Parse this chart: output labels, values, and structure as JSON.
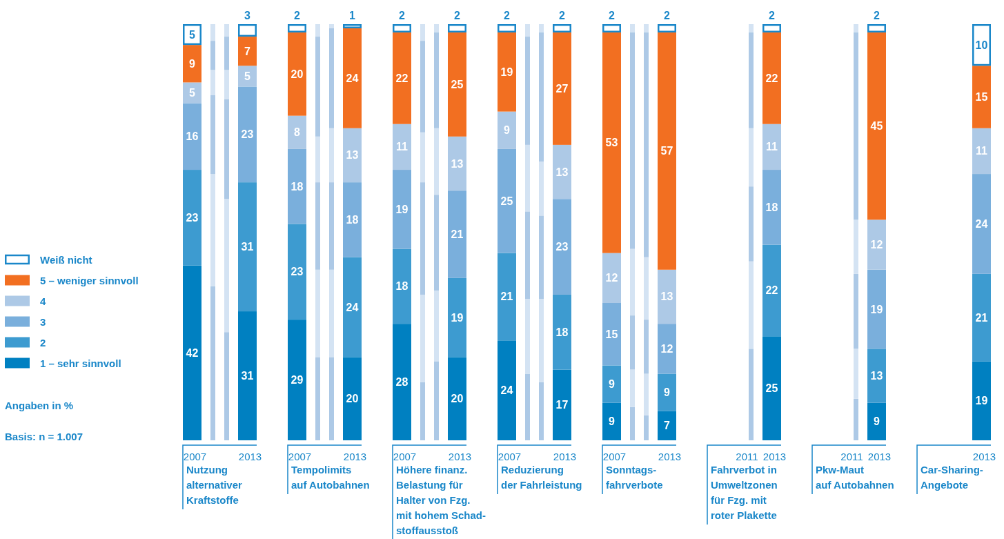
{
  "chart_data": [
    {
      "type": "bar",
      "stacked": true,
      "legend": "left",
      "annotations": [
        "Angaben in %",
        "Basis: n = 1.007"
      ],
      "categories": [
        "2007",
        null,
        null,
        "2013"
      ],
      "xlabel": "Nutzung\nalternativer\nKraftstoffe",
      "series": [
        {
          "name": "1 – sehr sinnvoll",
          "color": "#0080c1",
          "colors": [
            null,
            "#adc9e6",
            "#adc9e6",
            null
          ],
          "values": [
            42,
            37,
            26,
            31
          ],
          "value_labels": [
            "42",
            null,
            null,
            "31"
          ]
        },
        {
          "name": "2",
          "color": "#3d9bd0",
          "colors": [
            null,
            "#d4e3f3",
            "#d4e3f3",
            null
          ],
          "values": [
            23,
            27,
            32,
            31
          ],
          "value_labels": [
            "23",
            null,
            null,
            "31"
          ]
        },
        {
          "name": "3",
          "color": "#7aafdc",
          "colors": [
            null,
            "#adc9e6",
            "#adc9e6",
            null
          ],
          "values": [
            16,
            19,
            24,
            23
          ],
          "value_labels": [
            "16",
            null,
            null,
            "23"
          ]
        },
        {
          "name": "4",
          "color": "#adc9e6",
          "colors": [
            null,
            "#d4e3f3",
            "#d4e3f3",
            null
          ],
          "values": [
            5,
            6,
            7,
            5
          ],
          "value_labels": [
            "5",
            null,
            null,
            "5"
          ]
        },
        {
          "name": "5 – weniger sinnvoll",
          "color": "#f26f21",
          "colors": [
            null,
            "#adc9e6",
            "#adc9e6",
            null
          ],
          "values": [
            9,
            7,
            8,
            7
          ],
          "value_labels": [
            "9",
            null,
            null,
            "7"
          ]
        },
        {
          "name": "Weiß nicht",
          "color": "#ffffff",
          "colors": [
            null,
            "#d4e3f3",
            "#d4e3f3",
            null
          ],
          "values": [
            5,
            4,
            3,
            3
          ],
          "value_labels": [
            "5",
            null,
            null,
            "3"
          ]
        }
      ]
    },
    {
      "type": "bar",
      "stacked": true,
      "categories": [
        "2007",
        null,
        null,
        "2013"
      ],
      "xlabel": "Tempolimits\nauf Autobahnen",
      "series": [
        {
          "color": "#0080c1",
          "colors": [
            null,
            "#adc9e6",
            "#adc9e6",
            null
          ],
          "values": [
            29,
            20,
            20,
            20
          ],
          "value_labels": [
            "29",
            null,
            null,
            "20"
          ]
        },
        {
          "color": "#3d9bd0",
          "colors": [
            null,
            "#d4e3f3",
            "#d4e3f3",
            null
          ],
          "values": [
            23,
            21,
            21,
            24
          ],
          "value_labels": [
            "23",
            null,
            null,
            "24"
          ]
        },
        {
          "color": "#7aafdc",
          "colors": [
            null,
            "#adc9e6",
            "#adc9e6",
            null
          ],
          "values": [
            18,
            21,
            21,
            18
          ],
          "value_labels": [
            "18",
            null,
            null,
            "18"
          ]
        },
        {
          "color": "#adc9e6",
          "colors": [
            null,
            "#d4e3f3",
            "#d4e3f3",
            null
          ],
          "values": [
            8,
            11,
            13,
            13
          ],
          "value_labels": [
            "8",
            null,
            null,
            "13"
          ]
        },
        {
          "color": "#f26f21",
          "colors": [
            null,
            "#adc9e6",
            "#adc9e6",
            null
          ],
          "values": [
            20,
            24,
            24,
            24
          ],
          "value_labels": [
            "20",
            null,
            null,
            "24"
          ]
        },
        {
          "color": "#ffffff",
          "colors": [
            null,
            "#d4e3f3",
            "#d4e3f3",
            null
          ],
          "values": [
            2,
            3,
            1,
            1
          ],
          "value_labels": [
            "2",
            null,
            null,
            "1"
          ]
        }
      ]
    },
    {
      "type": "bar",
      "stacked": true,
      "categories": [
        "2007",
        null,
        null,
        "2013"
      ],
      "xlabel": "Höhere finanz.\nBelastung für\nHalter von Fzg.\nmit hohem Schad-\nstoffausstoß",
      "series": [
        {
          "color": "#0080c1",
          "colors": [
            null,
            "#adc9e6",
            "#adc9e6",
            null
          ],
          "values": [
            28,
            14,
            19,
            20
          ],
          "value_labels": [
            "28",
            null,
            null,
            "20"
          ]
        },
        {
          "color": "#3d9bd0",
          "colors": [
            null,
            "#d4e3f3",
            "#d4e3f3",
            null
          ],
          "values": [
            18,
            21,
            17,
            19
          ],
          "value_labels": [
            "18",
            null,
            null,
            "19"
          ]
        },
        {
          "color": "#7aafdc",
          "colors": [
            null,
            "#adc9e6",
            "#adc9e6",
            null
          ],
          "values": [
            19,
            27,
            23,
            21
          ],
          "value_labels": [
            "19",
            null,
            null,
            "21"
          ]
        },
        {
          "color": "#adc9e6",
          "colors": [
            null,
            "#d4e3f3",
            "#d4e3f3",
            null
          ],
          "values": [
            11,
            12,
            16,
            13
          ],
          "value_labels": [
            "11",
            null,
            null,
            "13"
          ]
        },
        {
          "color": "#f26f21",
          "colors": [
            null,
            "#adc9e6",
            "#adc9e6",
            null
          ],
          "values": [
            22,
            22,
            23,
            25
          ],
          "value_labels": [
            "22",
            null,
            null,
            "25"
          ]
        },
        {
          "color": "#ffffff",
          "colors": [
            null,
            "#d4e3f3",
            "#d4e3f3",
            null
          ],
          "values": [
            2,
            4,
            2,
            2
          ],
          "value_labels": [
            "2",
            null,
            null,
            "2"
          ]
        }
      ]
    },
    {
      "type": "bar",
      "stacked": true,
      "categories": [
        "2007",
        null,
        null,
        "2013"
      ],
      "xlabel": "Reduzierung\nder Fahrleistung",
      "series": [
        {
          "color": "#0080c1",
          "colors": [
            null,
            "#adc9e6",
            "#adc9e6",
            null
          ],
          "values": [
            24,
            16,
            14,
            17
          ],
          "value_labels": [
            "24",
            null,
            null,
            "17"
          ]
        },
        {
          "color": "#3d9bd0",
          "colors": [
            null,
            "#d4e3f3",
            "#d4e3f3",
            null
          ],
          "values": [
            21,
            18,
            20,
            18
          ],
          "value_labels": [
            "21",
            null,
            null,
            "18"
          ]
        },
        {
          "color": "#7aafdc",
          "colors": [
            null,
            "#adc9e6",
            "#adc9e6",
            null
          ],
          "values": [
            25,
            21,
            20,
            23
          ],
          "value_labels": [
            "25",
            null,
            null,
            "23"
          ]
        },
        {
          "color": "#adc9e6",
          "colors": [
            null,
            "#d4e3f3",
            "#d4e3f3",
            null
          ],
          "values": [
            9,
            16,
            13,
            13
          ],
          "value_labels": [
            "9",
            null,
            null,
            "13"
          ]
        },
        {
          "color": "#f26f21",
          "colors": [
            null,
            "#adc9e6",
            "#adc9e6",
            null
          ],
          "values": [
            19,
            26,
            31,
            27
          ],
          "value_labels": [
            "19",
            null,
            null,
            "27"
          ]
        },
        {
          "color": "#ffffff",
          "colors": [
            null,
            "#d4e3f3",
            "#d4e3f3",
            null
          ],
          "values": [
            2,
            3,
            2,
            2
          ],
          "value_labels": [
            "2",
            null,
            null,
            "2"
          ]
        }
      ]
    },
    {
      "type": "bar",
      "stacked": true,
      "categories": [
        "2007",
        null,
        null,
        "2013"
      ],
      "xlabel": "Sonntags-\nfahrverbote",
      "series": [
        {
          "color": "#0080c1",
          "colors": [
            null,
            "#adc9e6",
            "#adc9e6",
            null
          ],
          "values": [
            9,
            8,
            6,
            7
          ],
          "value_labels": [
            "9",
            null,
            null,
            "7"
          ]
        },
        {
          "color": "#3d9bd0",
          "colors": [
            null,
            "#d4e3f3",
            "#d4e3f3",
            null
          ],
          "values": [
            9,
            9,
            10,
            9
          ],
          "value_labels": [
            "9",
            null,
            null,
            "9"
          ]
        },
        {
          "color": "#7aafdc",
          "colors": [
            null,
            "#adc9e6",
            "#adc9e6",
            null
          ],
          "values": [
            15,
            13,
            13,
            12
          ],
          "value_labels": [
            "15",
            null,
            null,
            "12"
          ]
        },
        {
          "color": "#adc9e6",
          "colors": [
            null,
            "#d4e3f3",
            "#d4e3f3",
            null
          ],
          "values": [
            12,
            16,
            15,
            13
          ],
          "value_labels": [
            "12",
            null,
            null,
            "13"
          ]
        },
        {
          "color": "#f26f21",
          "colors": [
            null,
            "#adc9e6",
            "#adc9e6",
            null
          ],
          "values": [
            53,
            52,
            54,
            57
          ],
          "value_labels": [
            "53",
            null,
            null,
            "57"
          ]
        },
        {
          "color": "#ffffff",
          "colors": [
            null,
            "#d4e3f3",
            "#d4e3f3",
            null
          ],
          "values": [
            2,
            2,
            2,
            2
          ],
          "value_labels": [
            "2",
            null,
            null,
            "2"
          ]
        }
      ]
    },
    {
      "type": "bar",
      "stacked": true,
      "categories": [
        "2011",
        "2013"
      ],
      "xlabel": "Fahrverbot in\nUmweltzonen\nfür Fzg. mit\nroter Plakette",
      "series": [
        {
          "color": "#0080c1",
          "colors": [
            "#adc9e6",
            null
          ],
          "values": [
            22,
            25
          ],
          "value_labels": [
            null,
            "25"
          ]
        },
        {
          "color": "#3d9bd0",
          "colors": [
            "#d4e3f3",
            null
          ],
          "values": [
            21,
            22
          ],
          "value_labels": [
            null,
            "22"
          ]
        },
        {
          "color": "#7aafdc",
          "colors": [
            "#adc9e6",
            null
          ],
          "values": [
            18,
            18
          ],
          "value_labels": [
            null,
            "18"
          ]
        },
        {
          "color": "#adc9e6",
          "colors": [
            "#d4e3f3",
            null
          ],
          "values": [
            14,
            11
          ],
          "value_labels": [
            null,
            "11"
          ]
        },
        {
          "color": "#f26f21",
          "colors": [
            "#adc9e6",
            null
          ],
          "values": [
            23,
            22
          ],
          "value_labels": [
            null,
            "22"
          ]
        },
        {
          "color": "#ffffff",
          "colors": [
            "#d4e3f3",
            null
          ],
          "values": [
            2,
            2
          ],
          "value_labels": [
            null,
            "2"
          ]
        }
      ]
    },
    {
      "type": "bar",
      "stacked": true,
      "categories": [
        "2011",
        "2013"
      ],
      "xlabel": "Pkw-Maut\nauf Autobahnen",
      "series": [
        {
          "color": "#0080c1",
          "colors": [
            "#adc9e6",
            null
          ],
          "values": [
            10,
            9
          ],
          "value_labels": [
            null,
            "9"
          ]
        },
        {
          "color": "#3d9bd0",
          "colors": [
            "#d4e3f3",
            null
          ],
          "values": [
            12,
            13
          ],
          "value_labels": [
            null,
            "13"
          ]
        },
        {
          "color": "#7aafdc",
          "colors": [
            "#adc9e6",
            null
          ],
          "values": [
            18,
            19
          ],
          "value_labels": [
            null,
            "19"
          ]
        },
        {
          "color": "#adc9e6",
          "colors": [
            "#d4e3f3",
            null
          ],
          "values": [
            13,
            12
          ],
          "value_labels": [
            null,
            "12"
          ]
        },
        {
          "color": "#f26f21",
          "colors": [
            "#adc9e6",
            null
          ],
          "values": [
            45,
            45
          ],
          "value_labels": [
            null,
            "45"
          ]
        },
        {
          "color": "#ffffff",
          "colors": [
            "#d4e3f3",
            null
          ],
          "values": [
            2,
            2
          ],
          "value_labels": [
            null,
            "2"
          ]
        }
      ]
    },
    {
      "type": "bar",
      "stacked": true,
      "categories": [
        "2013"
      ],
      "xlabel": "Car-Sharing-\nAngebote",
      "series": [
        {
          "color": "#0080c1",
          "values": [
            19
          ],
          "value_labels": [
            "19"
          ]
        },
        {
          "color": "#3d9bd0",
          "values": [
            21
          ],
          "value_labels": [
            "21"
          ]
        },
        {
          "color": "#7aafdc",
          "values": [
            24
          ],
          "value_labels": [
            "24"
          ]
        },
        {
          "color": "#adc9e6",
          "values": [
            11
          ],
          "value_labels": [
            "11"
          ]
        },
        {
          "color": "#f26f21",
          "values": [
            15
          ],
          "value_labels": [
            "15"
          ]
        },
        {
          "color": "#ffffff",
          "values": [
            10
          ],
          "value_labels": [
            "10"
          ]
        }
      ]
    }
  ]
}
